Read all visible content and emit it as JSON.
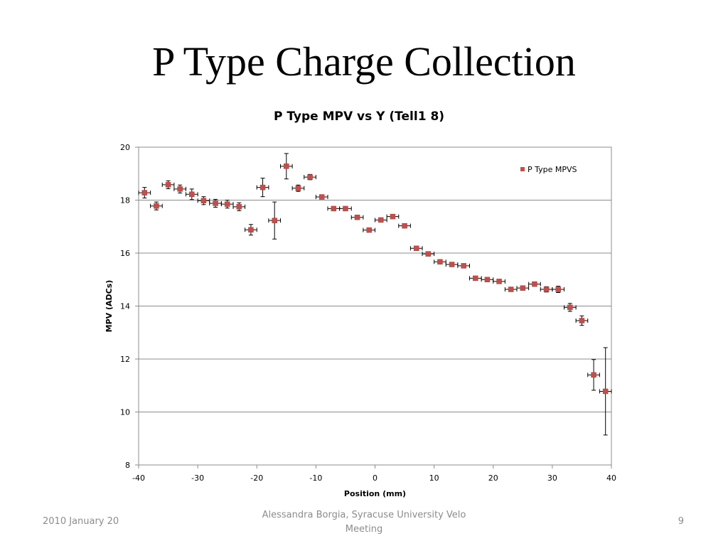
{
  "slide": {
    "title": "P Type Charge Collection",
    "footer_date": "2010 January 20",
    "footer_center": "Alessandra Borgia, Syracuse University Velo Meeting",
    "page_number": "9"
  },
  "colors": {
    "marker": "#c0504d",
    "error_bar": "#000000",
    "grid": "#8c8c8c"
  },
  "chart_data": {
    "type": "scatter",
    "title": "P Type MPV vs Y (Tell1 8)",
    "xlabel": "Position (mm)",
    "ylabel": "MPV (ADCs)",
    "xlim": [
      -40,
      40
    ],
    "ylim": [
      8,
      20
    ],
    "xticks": [
      -40,
      -30,
      -20,
      -10,
      0,
      10,
      20,
      30,
      40
    ],
    "yticks": [
      8,
      10,
      12,
      14,
      16,
      18,
      20
    ],
    "grid": "horizontal",
    "legend_position": "top-right",
    "series": [
      {
        "name": "P Type MPVS",
        "x_error": 1,
        "points": [
          {
            "x": -39,
            "y": 18.28,
            "yerr": 0.2
          },
          {
            "x": -37,
            "y": 17.78,
            "yerr": 0.15
          },
          {
            "x": -35,
            "y": 18.58,
            "yerr": 0.15
          },
          {
            "x": -33,
            "y": 18.42,
            "yerr": 0.15
          },
          {
            "x": -31,
            "y": 18.22,
            "yerr": 0.2
          },
          {
            "x": -29,
            "y": 17.98,
            "yerr": 0.15
          },
          {
            "x": -27,
            "y": 17.88,
            "yerr": 0.15
          },
          {
            "x": -25,
            "y": 17.85,
            "yerr": 0.15
          },
          {
            "x": -23,
            "y": 17.75,
            "yerr": 0.15
          },
          {
            "x": -21,
            "y": 16.88,
            "yerr": 0.2
          },
          {
            "x": -19,
            "y": 18.48,
            "yerr": 0.35
          },
          {
            "x": -17,
            "y": 17.23,
            "yerr": 0.7
          },
          {
            "x": -15,
            "y": 19.28,
            "yerr": 0.48
          },
          {
            "x": -13,
            "y": 18.45,
            "yerr": 0.12
          },
          {
            "x": -11,
            "y": 18.87,
            "yerr": 0.1
          },
          {
            "x": -9,
            "y": 18.12,
            "yerr": 0.08
          },
          {
            "x": -7,
            "y": 17.68,
            "yerr": 0.05
          },
          {
            "x": -5,
            "y": 17.68,
            "yerr": 0.05
          },
          {
            "x": -3,
            "y": 17.35,
            "yerr": 0.05
          },
          {
            "x": -1,
            "y": 16.87,
            "yerr": 0.05
          },
          {
            "x": 1,
            "y": 17.25,
            "yerr": 0.05
          },
          {
            "x": 3,
            "y": 17.38,
            "yerr": 0.05
          },
          {
            "x": 5,
            "y": 17.03,
            "yerr": 0.05
          },
          {
            "x": 7,
            "y": 16.18,
            "yerr": 0.05
          },
          {
            "x": 9,
            "y": 15.97,
            "yerr": 0.05
          },
          {
            "x": 11,
            "y": 15.67,
            "yerr": 0.05
          },
          {
            "x": 13,
            "y": 15.57,
            "yerr": 0.05
          },
          {
            "x": 15,
            "y": 15.52,
            "yerr": 0.05
          },
          {
            "x": 17,
            "y": 15.05,
            "yerr": 0.05
          },
          {
            "x": 19,
            "y": 15.0,
            "yerr": 0.05
          },
          {
            "x": 21,
            "y": 14.93,
            "yerr": 0.05
          },
          {
            "x": 23,
            "y": 14.63,
            "yerr": 0.05
          },
          {
            "x": 25,
            "y": 14.68,
            "yerr": 0.05
          },
          {
            "x": 27,
            "y": 14.83,
            "yerr": 0.08
          },
          {
            "x": 29,
            "y": 14.63,
            "yerr": 0.1
          },
          {
            "x": 31,
            "y": 14.63,
            "yerr": 0.12
          },
          {
            "x": 33,
            "y": 13.95,
            "yerr": 0.15
          },
          {
            "x": 35,
            "y": 13.45,
            "yerr": 0.18
          },
          {
            "x": 37,
            "y": 11.4,
            "yerr": 0.58
          },
          {
            "x": 39,
            "y": 10.78,
            "yerr": 1.65
          }
        ]
      }
    ]
  }
}
